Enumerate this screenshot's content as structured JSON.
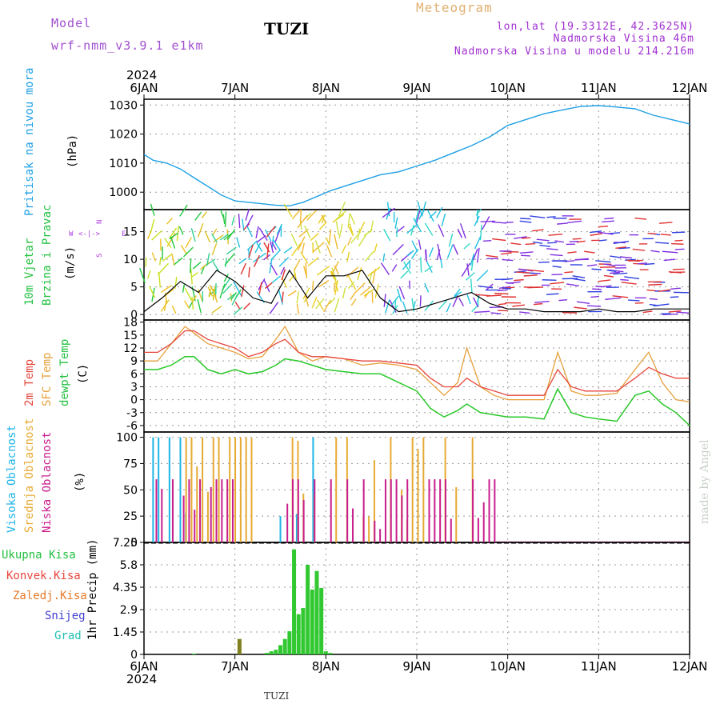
{
  "header": {
    "model_label": "Model",
    "model_name": "wrf-nmm_v3.9.1 e1km",
    "station": "TUZI",
    "meteogram": "Meteogram",
    "lonlat": "lon,lat (19.3312E, 42.3625N)",
    "altitude": "Nadmorska Visina 46m",
    "model_altitude": "Nadmorska Visina u modelu 214.216m",
    "year_top": "2024",
    "year_bottom": "2024",
    "footer_station": "TUZI",
    "credit": "made by Angel"
  },
  "x_ticks": [
    "6JAN",
    "7JAN",
    "8JAN",
    "9JAN",
    "10JAN",
    "11JAN",
    "12JAN"
  ],
  "panel_labels": {
    "pressure": [
      "Pritisak na nivou mora",
      "(hPa)"
    ],
    "wind": [
      "10m Vjetar",
      "Brzina i Pravac",
      "(m/s)"
    ],
    "wind_legend": {
      "n": "N",
      "w": "W",
      "e": "E",
      "s": "S"
    },
    "temp": [
      "2m Temp",
      "SFC Temp",
      "dewpt Temp",
      "(C)"
    ],
    "cloud": [
      "Visoka Oblacnost",
      "Srednja Oblacnost",
      "Niska Oblacnost",
      "(%)"
    ],
    "precip_axis": "1hr Precip (mm)",
    "precip_legend": [
      "Ukupna Kisa",
      "Konvek.Kisa",
      "Zaledj.Kisa",
      "Snijeg",
      "Grad"
    ]
  },
  "colors": {
    "pressure": "#1ea0e6",
    "temp2m": "#e6463c",
    "sfc": "#e6a03c",
    "dewpt": "#28c828",
    "cloud_high": "#1eb4e6",
    "cloud_mid": "#e6aa32",
    "cloud_low": "#c81e8c",
    "precip": "#32c832"
  },
  "chart_data": [
    {
      "type": "line",
      "ylabel": "(hPa)",
      "ylim": [
        994,
        1032
      ],
      "yticks": [
        1000,
        1010,
        1020,
        1030
      ],
      "x_days": [
        0,
        0.1,
        0.25,
        0.4,
        0.55,
        0.7,
        0.85,
        1.0,
        1.15,
        1.3,
        1.45,
        1.6,
        1.75,
        1.9,
        2.05,
        2.2,
        2.4,
        2.6,
        2.8,
        3.0,
        3.2,
        3.4,
        3.6,
        3.8,
        4.0,
        4.2,
        4.4,
        4.6,
        4.8,
        5.0,
        5.2,
        5.4,
        5.6,
        5.8,
        6.0
      ],
      "series": [
        {
          "values": [
            1013,
            1011,
            1010,
            1008,
            1005,
            1002,
            999,
            997,
            996.5,
            996,
            995.5,
            995.3,
            996.5,
            998.5,
            1000.5,
            1002,
            1004,
            1006,
            1007,
            1009,
            1011,
            1013.5,
            1016,
            1019,
            1023,
            1025,
            1027,
            1028.3,
            1029.5,
            1029.8,
            1029.3,
            1028.7,
            1026.5,
            1025,
            1023.5
          ]
        }
      ]
    },
    {
      "type": "line",
      "ylabel": "(m/s)",
      "ylim": [
        -1,
        19
      ],
      "yticks": [
        0,
        5,
        10,
        15
      ],
      "x_days": [
        0,
        0.2,
        0.4,
        0.6,
        0.8,
        1.0,
        1.2,
        1.4,
        1.6,
        1.8,
        2.0,
        2.2,
        2.4,
        2.6,
        2.8,
        3.0,
        3.2,
        3.4,
        3.6,
        3.8,
        4.0,
        4.2,
        4.4,
        4.6,
        4.8,
        5.0,
        5.2,
        5.4,
        5.6,
        5.8,
        6.0
      ],
      "series": [
        {
          "values": [
            0.5,
            3,
            6,
            4,
            8,
            6,
            3,
            2,
            8,
            3,
            7,
            7,
            8,
            3,
            0.5,
            1,
            2,
            3,
            4,
            2,
            1,
            1,
            0.5,
            0.5,
            0.5,
            1,
            0.5,
            0.5,
            1,
            1,
            1
          ]
        }
      ]
    },
    {
      "type": "line",
      "ylabel": "(C)",
      "ylim": [
        -7.5,
        18.5
      ],
      "yticks": [
        -6,
        -3,
        0,
        3,
        6,
        9,
        12,
        15,
        18
      ],
      "x_days": [
        0,
        0.15,
        0.3,
        0.45,
        0.55,
        0.7,
        0.85,
        1.0,
        1.15,
        1.3,
        1.45,
        1.55,
        1.7,
        1.85,
        2.0,
        2.2,
        2.4,
        2.6,
        2.8,
        3.0,
        3.15,
        3.3,
        3.45,
        3.55,
        3.7,
        3.85,
        4.0,
        4.2,
        4.4,
        4.55,
        4.7,
        4.85,
        5.0,
        5.2,
        5.4,
        5.55,
        5.7,
        5.85,
        6.0
      ],
      "series": [
        {
          "name": "2m Temp",
          "values": [
            11,
            11,
            13,
            16,
            16,
            14,
            13,
            12,
            10,
            11,
            13,
            14,
            11,
            10,
            10,
            9.5,
            9,
            9,
            8.5,
            8,
            5,
            3,
            3,
            5,
            3,
            2,
            1,
            1,
            1,
            7,
            3,
            2,
            2,
            2,
            5,
            7.5,
            6,
            5,
            5
          ]
        },
        {
          "name": "SFC Temp",
          "values": [
            9,
            9,
            13,
            17,
            15.5,
            13,
            12,
            11,
            9.5,
            10,
            14,
            17,
            11,
            9,
            10,
            9.5,
            8,
            8.5,
            8,
            7,
            4,
            1,
            4,
            12,
            3,
            1,
            0,
            0,
            0,
            11,
            2,
            1,
            1,
            1.5,
            7,
            11,
            4,
            0,
            -0.5
          ]
        },
        {
          "name": "dewpt Temp",
          "values": [
            7,
            7,
            8,
            10,
            10,
            7,
            6,
            7,
            6,
            6.5,
            8,
            9.5,
            9,
            8,
            7,
            6.5,
            6,
            6,
            4,
            2,
            -2,
            -4,
            -2.5,
            -1,
            -3,
            -3.5,
            -4,
            -4,
            -4.5,
            2.5,
            -3,
            -4,
            -4.5,
            -5,
            1,
            2,
            -1,
            -3,
            -6
          ]
        }
      ]
    },
    {
      "type": "bar",
      "ylabel": "(%)",
      "ylim": [
        0,
        105
      ],
      "yticks": [
        0,
        25,
        50,
        75,
        100
      ],
      "series": [
        {
          "name": "Visoka Oblacnost",
          "active_days": [
            [
              0.1,
              0.5
            ],
            [
              1.5,
              1.95
            ]
          ],
          "typical": 100
        },
        {
          "name": "Srednja Oblacnost",
          "active_days": [
            [
              0.45,
              1.35
            ],
            [
              1.5,
              3.8
            ]
          ],
          "typical": 100
        },
        {
          "name": "Niska Oblacnost",
          "active_days": [
            [
              0.05,
              1.1
            ],
            [
              1.55,
              3.85
            ]
          ],
          "typical": 60
        }
      ]
    },
    {
      "type": "bar",
      "ylabel": "1hr Precip (mm)",
      "ylim": [
        0,
        7.25
      ],
      "yticks": [
        0,
        1.45,
        2.9,
        4.35,
        5.8,
        7.25
      ],
      "x_days": [
        0.55,
        1.05,
        1.35,
        1.4,
        1.45,
        1.5,
        1.55,
        1.6,
        1.65,
        1.7,
        1.75,
        1.8,
        1.85,
        1.9,
        1.95,
        2.0,
        2.05
      ],
      "values": [
        0.05,
        1.0,
        0.1,
        0.2,
        0.3,
        0.6,
        1.0,
        1.5,
        6.8,
        2.6,
        3.0,
        5.8,
        4.2,
        5.4,
        4.3,
        0.2,
        0.1
      ]
    }
  ]
}
